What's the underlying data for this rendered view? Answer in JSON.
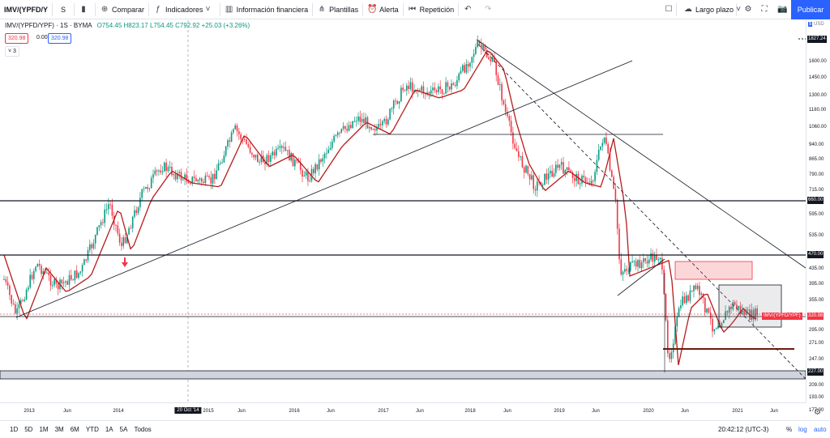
{
  "toolbar": {
    "symbol": "IMV/(YPFD/Y",
    "interval": "S",
    "compare": "Comparar",
    "indicators": "Indicadores",
    "financials": "Información financiera",
    "templates": "Plantillas",
    "alert": "Alerta",
    "replay": "Repetición",
    "layout": "Largo plazo",
    "publish": "Publicar"
  },
  "legend": {
    "title": "IMV/(YPFD/YPF) · 1S · BYMA",
    "ohlc": "O754.45 H823.17 L754.45 C792.92 +25.03 (+3.26%)",
    "bid": "320.98",
    "spread": "0.00",
    "ask": "320.98",
    "studies": "3"
  },
  "price_axis": {
    "currency": "USD",
    "ticks": [
      "1827.24",
      "1600.00",
      "1450.00",
      "1300.00",
      "1180.00",
      "1060.00",
      "940.00",
      "865.00",
      "790.00",
      "715.00",
      "660.00",
      "595.00",
      "535.00",
      "470.00",
      "435.00",
      "395.00",
      "355.00",
      "320.98",
      "295.00",
      "271.00",
      "247.00",
      "227.00",
      "209.00",
      "193.00",
      "177.00"
    ],
    "marked": {
      "top": "1827.24",
      "l660": "660.00",
      "l470": "470.00",
      "l227": "227.00",
      "last": "320.98",
      "series": "IMV/(YPFD/YPF)"
    }
  },
  "time_axis": [
    "2013",
    "Jun",
    "2014",
    "20 Oct '14",
    "2015",
    "Jun",
    "2016",
    "Jun",
    "2017",
    "Jun",
    "2018",
    "Jun",
    "2019",
    "Jun",
    "2020",
    "Jun",
    "2021",
    "Jun"
  ],
  "bottom": {
    "ranges": [
      "1D",
      "5D",
      "1M",
      "3M",
      "6M",
      "YTD",
      "1A",
      "5A",
      "Todos"
    ],
    "clock": "20:42:12 (UTC-3)",
    "pct": "%",
    "log": "log",
    "auto": "auto"
  },
  "colors": {
    "up": "#089981",
    "down": "#f23645",
    "ma": "#b71c1c",
    "accent": "#2962ff"
  }
}
